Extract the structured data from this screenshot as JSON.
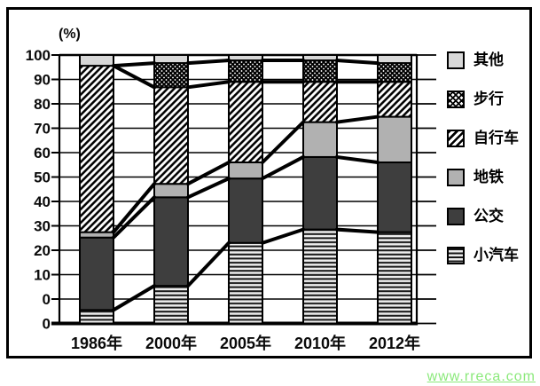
{
  "unit_label": "(%)",
  "watermark": {
    "text": "www.rreca.com",
    "color": "#8ae97a"
  },
  "chart_data": {
    "type": "bar",
    "stacked": true,
    "title": "",
    "xlabel": "",
    "ylabel": "(%)",
    "categories": [
      "1986年",
      "2000年",
      "2005年",
      "2010年",
      "2012年"
    ],
    "series": [
      {
        "key": "car",
        "name": "小汽车",
        "pattern": "horizontal-stripes",
        "values": [
          5,
          14,
          30,
          35,
          34
        ]
      },
      {
        "key": "bus",
        "name": "公交",
        "pattern": "solid",
        "color": "#3e3e3e",
        "values": [
          27,
          33,
          24,
          27,
          26
        ]
      },
      {
        "key": "subway",
        "name": "地铁",
        "pattern": "solid",
        "color": "#b1b1b1",
        "values": [
          2,
          5,
          6,
          13,
          17
        ]
      },
      {
        "key": "bike",
        "name": "自行车",
        "pattern": "diagonal-hatch",
        "values": [
          62,
          36,
          30,
          15,
          13
        ]
      },
      {
        "key": "walk",
        "name": "步行",
        "pattern": "crosshatch",
        "values": [
          0,
          9,
          8,
          8,
          7
        ]
      },
      {
        "key": "other",
        "name": "其他",
        "pattern": "solid",
        "color": "#d8d8d8",
        "values": [
          4,
          3,
          2,
          2,
          3
        ]
      }
    ],
    "y_axis": {
      "ticks": [
        100,
        90,
        80,
        70,
        60,
        50,
        40,
        30,
        20,
        10,
        0,
        0
      ],
      "range": [
        0,
        100
      ],
      "grid": true
    },
    "legend_position": "right",
    "legend_order_top_to_bottom": [
      "其他",
      "步行",
      "自行车",
      "地铁",
      "公交",
      "小汽车"
    ],
    "connector_lines": true,
    "line_color": "#000000"
  }
}
